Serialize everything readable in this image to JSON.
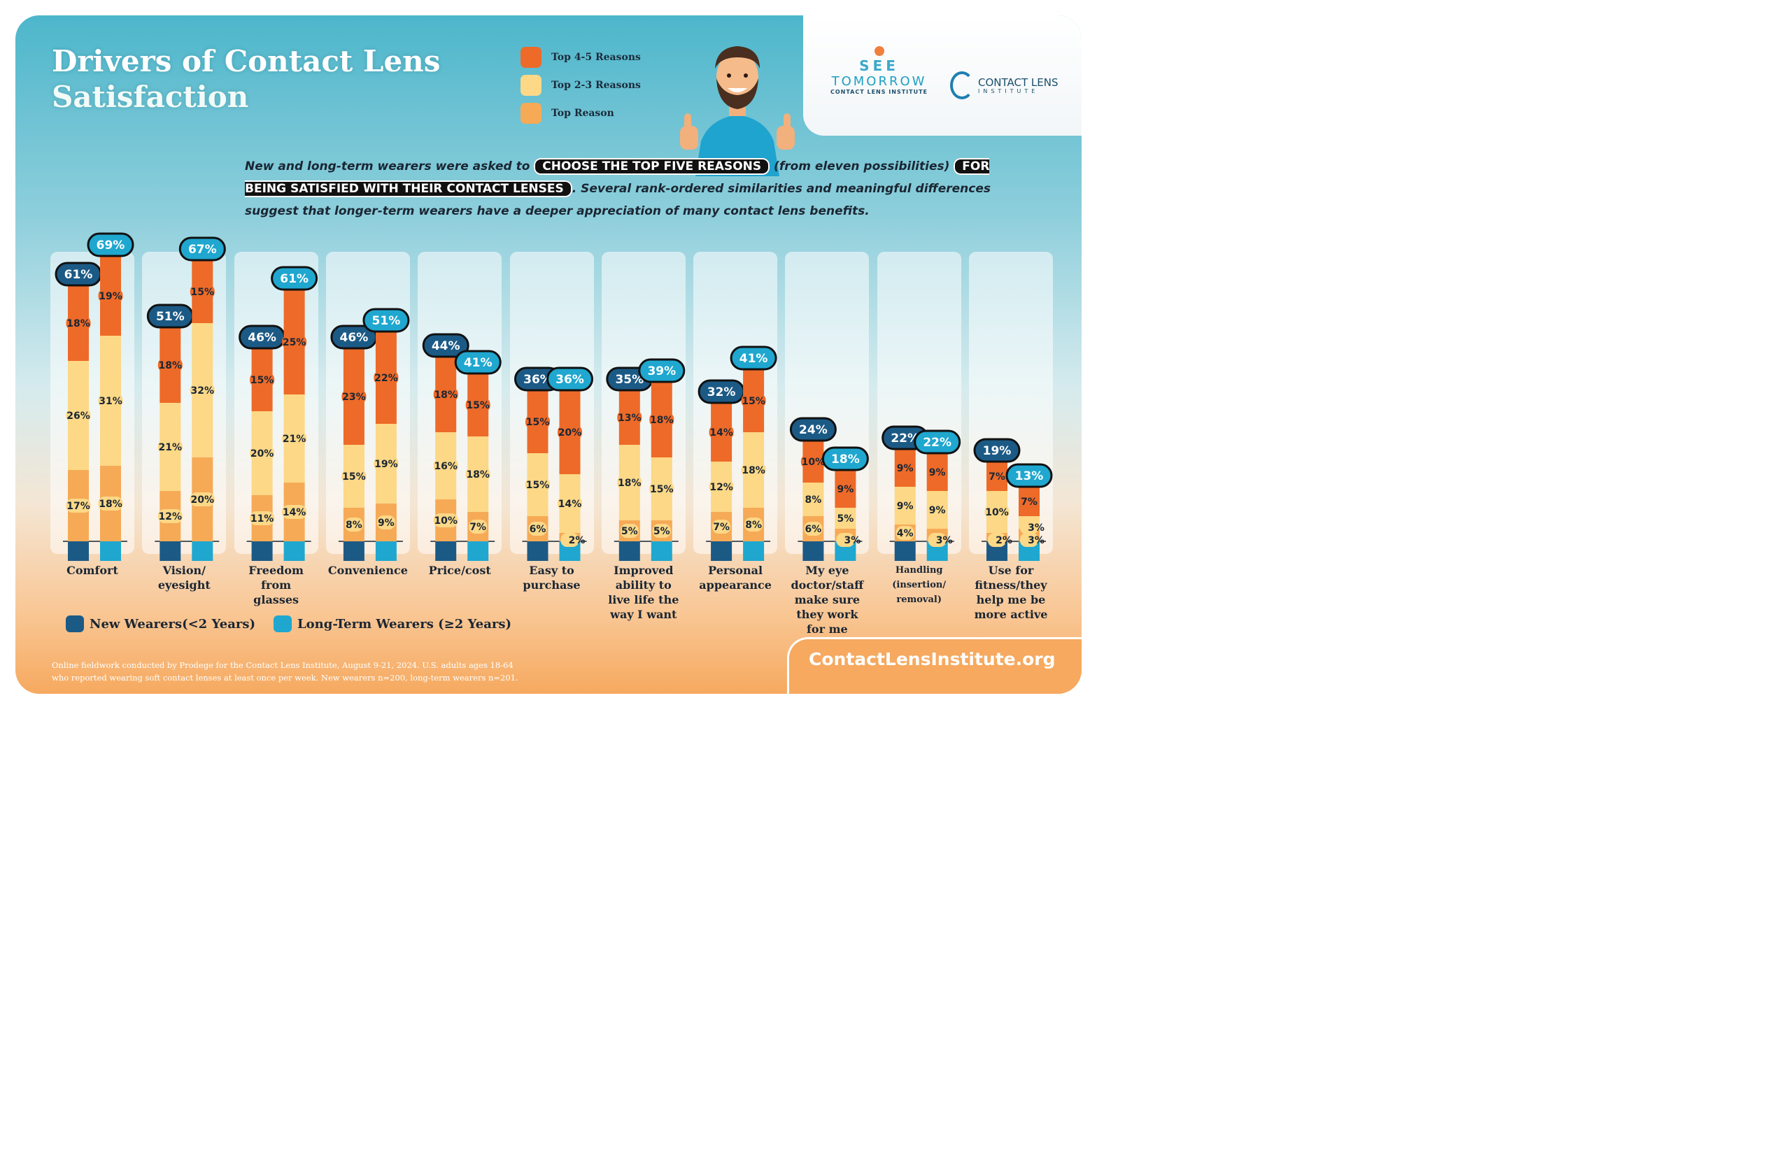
{
  "title": {
    "line1": "Drivers of Contact Lens",
    "line2": "Satisfaction"
  },
  "legend_top": [
    {
      "label": "Top 4-5 Reasons",
      "color": "#ee6a28"
    },
    {
      "label": "Top 2-3 Reasons",
      "color": "#fcd887"
    },
    {
      "label": "Top Reason",
      "color": "#f6aa56"
    }
  ],
  "logos": {
    "see_tomorrow": {
      "line1": "SEE",
      "line2": "TOMORROW",
      "line3": "CONTACT LENS INSTITUTE"
    },
    "cli": {
      "line1": "CONTACT LENS",
      "line2": "INSTITUTE"
    }
  },
  "intro": {
    "part1": "New and long-term wearers were asked to",
    "highlight1": "CHOOSE THE TOP FIVE REASONS",
    "part2": "(from eleven possibilities)",
    "highlight2": "FOR BEING SATISFIED WITH THEIR CONTACT LENSES",
    "part3": ". Several rank-ordered similarities and meaningful differences suggest that longer-term wearers have a deeper appreciation of many contact lens benefits."
  },
  "legend_bottom": [
    {
      "label": "New Wearers(<2 Years)",
      "color": "#1c5a86"
    },
    {
      "label": "Long-Term Wearers (≥2 Years)",
      "color": "#1fa7cf"
    }
  ],
  "footnote": {
    "line1": "Online fieldwork conducted by Prodege for the Contact Lens Institute, August 9-21, 2024. U.S. adults ages 18-64",
    "line2": "who reported wearing soft contact lenses at least once per week. New wearers n=200, long-term wearers n=201."
  },
  "url": "ContactLensInstitute.org",
  "chart_data": {
    "type": "bar",
    "stacked": true,
    "ylim": [
      0,
      70
    ],
    "stack_order": [
      "Top Reason",
      "Top 2-3 Reasons",
      "Top 4-5 Reasons"
    ],
    "categories": [
      {
        "label": [
          "Comfort"
        ],
        "new": {
          "total": "61%",
          "segments": [
            17,
            26,
            18
          ],
          "labels": [
            "17%",
            "26%",
            "18%"
          ]
        },
        "long": {
          "total": "69%",
          "segments": [
            18,
            31,
            19
          ],
          "labels": [
            "18%",
            "31%",
            "19%"
          ]
        }
      },
      {
        "label": [
          "Vision/",
          "eyesight"
        ],
        "new": {
          "total": "51%",
          "segments": [
            12,
            21,
            18
          ],
          "labels": [
            "12%",
            "21%",
            "18%"
          ]
        },
        "long": {
          "total": "67%",
          "segments": [
            20,
            32,
            15
          ],
          "labels": [
            "20%",
            "32%",
            "15%"
          ]
        }
      },
      {
        "label": [
          "Freedom",
          "from",
          "glasses"
        ],
        "new": {
          "total": "46%",
          "segments": [
            11,
            20,
            15
          ],
          "labels": [
            "11%",
            "20%",
            "15%"
          ]
        },
        "long": {
          "total": "61%",
          "segments": [
            14,
            21,
            25
          ],
          "labels": [
            "14%",
            "21%",
            "25%"
          ]
        }
      },
      {
        "label": [
          "Convenience"
        ],
        "new": {
          "total": "46%",
          "segments": [
            8,
            15,
            23
          ],
          "labels": [
            "8%",
            "15%",
            "23%"
          ]
        },
        "long": {
          "total": "51%",
          "segments": [
            9,
            19,
            22
          ],
          "labels": [
            "9%",
            "19%",
            "22%"
          ]
        }
      },
      {
        "label": [
          "Price/cost"
        ],
        "new": {
          "total": "44%",
          "segments": [
            10,
            16,
            18
          ],
          "labels": [
            "10%",
            "16%",
            "18%"
          ]
        },
        "long": {
          "total": "41%",
          "segments": [
            7,
            18,
            15
          ],
          "labels": [
            "7%",
            "18%",
            "15%"
          ]
        }
      },
      {
        "label": [
          "Easy to",
          "purchase"
        ],
        "new": {
          "total": "36%",
          "segments": [
            6,
            15,
            15
          ],
          "labels": [
            "6%",
            "15%",
            "15%"
          ]
        },
        "long": {
          "total": "36%",
          "segments": [
            2,
            14,
            20
          ],
          "labels": [
            "2%",
            "14%",
            "20%"
          ]
        }
      },
      {
        "label": [
          "Improved",
          "ability to",
          "live life the",
          "way I want"
        ],
        "new": {
          "total": "35%",
          "segments": [
            5,
            18,
            13
          ],
          "labels": [
            "5%",
            "18%",
            "13%"
          ]
        },
        "long": {
          "total": "39%",
          "segments": [
            5,
            15,
            18
          ],
          "labels": [
            "5%",
            "15%",
            "18%"
          ]
        }
      },
      {
        "label": [
          "Personal",
          "appearance"
        ],
        "new": {
          "total": "32%",
          "segments": [
            7,
            12,
            14
          ],
          "labels": [
            "7%",
            "12%",
            "14%"
          ]
        },
        "long": {
          "total": "41%",
          "segments": [
            8,
            18,
            15
          ],
          "labels": [
            "8%",
            "18%",
            "15%"
          ]
        }
      },
      {
        "label": [
          "My eye",
          "doctor/staff",
          "make sure",
          "they work",
          "for me"
        ],
        "new": {
          "total": "24%",
          "segments": [
            6,
            8,
            10
          ],
          "labels": [
            "6%",
            "8%",
            "10%"
          ]
        },
        "long": {
          "total": "18%",
          "segments": [
            3,
            5,
            9
          ],
          "labels": [
            "3%",
            "5%",
            "9%"
          ]
        }
      },
      {
        "label": [
          "Handling",
          "(insertion/",
          "removal)"
        ],
        "new": {
          "total": "22%",
          "segments": [
            4,
            9,
            9
          ],
          "labels": [
            "4%",
            "9%",
            "9%"
          ]
        },
        "long": {
          "total": "22%",
          "segments": [
            3,
            9,
            9
          ],
          "labels": [
            "3%",
            "9%",
            "9%"
          ]
        }
      },
      {
        "label": [
          "Use for",
          "fitness/they",
          "help me be",
          "more active"
        ],
        "new": {
          "total": "19%",
          "segments": [
            2,
            10,
            7
          ],
          "labels": [
            "2%",
            "10%",
            "7%"
          ]
        },
        "long": {
          "total": "13%",
          "segments": [
            3,
            3,
            7
          ],
          "labels": [
            "3%",
            "3%",
            "7%"
          ]
        }
      }
    ]
  }
}
